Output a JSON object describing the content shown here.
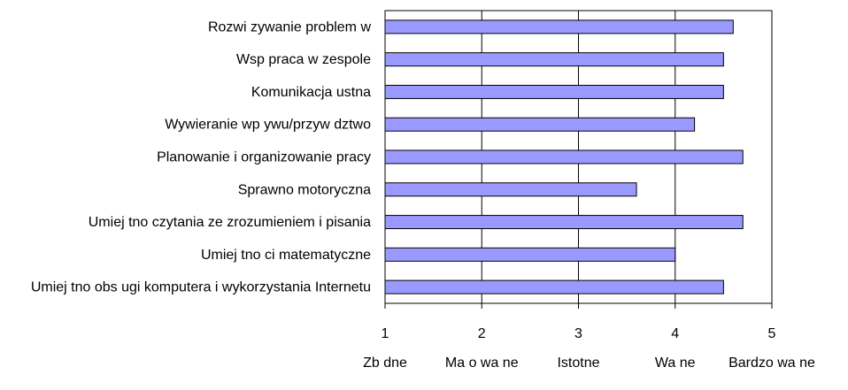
{
  "chart_data": {
    "type": "bar",
    "orientation": "horizontal",
    "categories": [
      "Rozwi zywanie problem w",
      "Wsp praca w zespole",
      "Komunikacja ustna",
      "Wywieranie wp ywu/przyw dztwo",
      "Planowanie i organizowanie pracy",
      "Sprawno motoryczna",
      "Umiej tno czytania ze zrozumieniem i pisania",
      "Umiej tno ci matematyczne",
      "Umiej tno obs ugi komputera i wykorzystania Internetu"
    ],
    "values": [
      4.6,
      4.5,
      4.5,
      4.2,
      4.7,
      3.6,
      4.7,
      4.0,
      4.5
    ],
    "xlim": [
      1,
      5
    ],
    "x_ticks": [
      "1",
      "2",
      "3",
      "4",
      "5"
    ],
    "scale_labels": [
      "Zb dne",
      "Ma o wa ne",
      "Istotne",
      "Wa ne",
      "Bardzo wa ne"
    ],
    "grid": "vertical",
    "legend": "none",
    "colors": {
      "bar_fill": "#9999ff",
      "bar_stroke": "#000000"
    }
  }
}
